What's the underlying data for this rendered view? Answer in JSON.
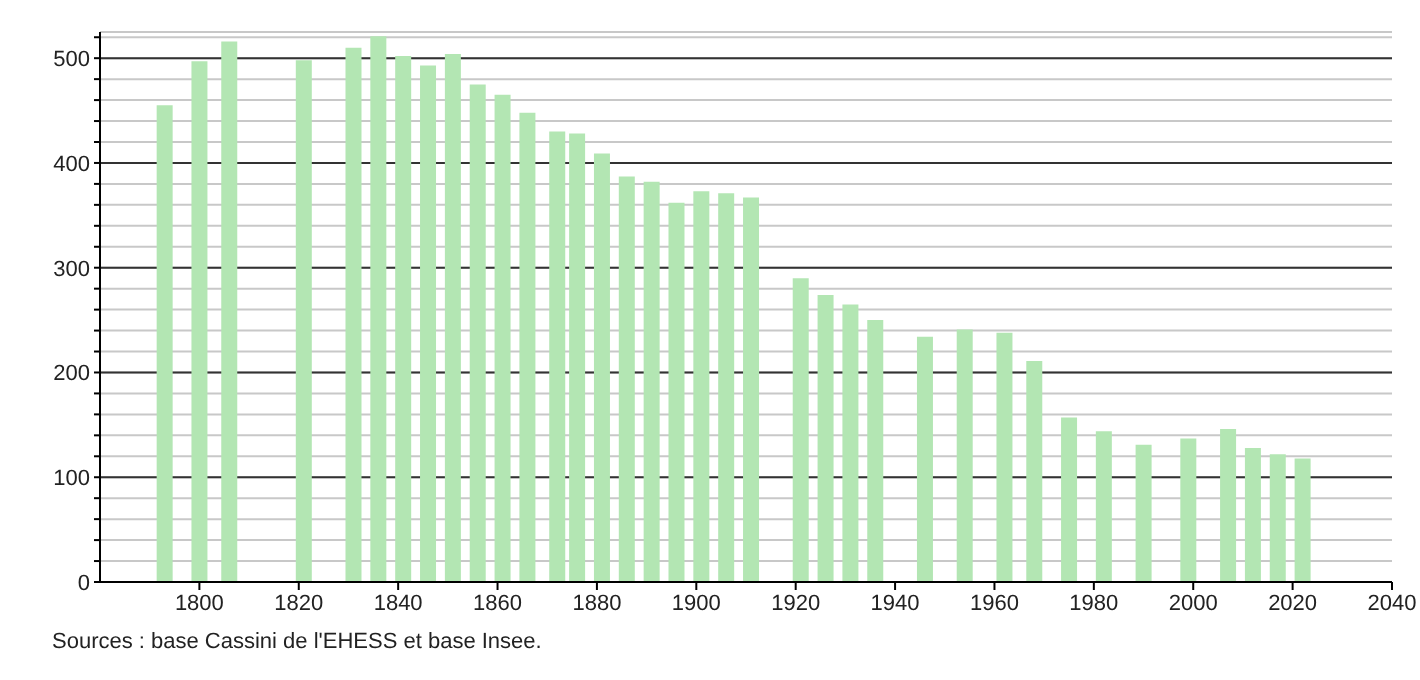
{
  "chart_data": {
    "type": "bar",
    "x": [
      1793,
      1800,
      1806,
      1821,
      1831,
      1836,
      1841,
      1846,
      1851,
      1856,
      1861,
      1866,
      1872,
      1876,
      1881,
      1886,
      1891,
      1896,
      1901,
      1906,
      1911,
      1921,
      1926,
      1931,
      1936,
      1946,
      1954,
      1962,
      1968,
      1975,
      1982,
      1990,
      1999,
      2007,
      2012,
      2017,
      2022
    ],
    "values": [
      455,
      497,
      516,
      498,
      510,
      521,
      502,
      493,
      504,
      475,
      465,
      448,
      430,
      428,
      409,
      387,
      382,
      362,
      373,
      371,
      367,
      290,
      274,
      265,
      250,
      234,
      241,
      238,
      211,
      157,
      144,
      131,
      137,
      146,
      128,
      122,
      118
    ],
    "color": "#b3e6b3",
    "xlim": [
      1780,
      2040
    ],
    "xticks": [
      1800,
      1820,
      1840,
      1860,
      1880,
      1900,
      1920,
      1940,
      1960,
      1980,
      2000,
      2020,
      2040
    ],
    "ylim": [
      0,
      525
    ],
    "yticks": [
      0,
      {
        "value": 20,
        "label": null
      },
      {
        "value": 40,
        "label": null
      },
      {
        "value": 60,
        "label": null
      },
      {
        "value": 80,
        "label": null
      },
      100,
      {
        "value": 120,
        "label": null
      },
      {
        "value": 140,
        "label": null
      },
      {
        "value": 160,
        "label": null
      },
      {
        "value": 180,
        "label": null
      },
      200,
      {
        "value": 220,
        "label": null
      },
      {
        "value": 240,
        "label": null
      },
      {
        "value": 260,
        "label": null
      },
      {
        "value": 280,
        "label": null
      },
      300,
      {
        "value": 320,
        "label": null
      },
      {
        "value": 340,
        "label": null
      },
      {
        "value": 360,
        "label": null
      },
      {
        "value": 380,
        "label": null
      },
      400,
      {
        "value": 420,
        "label": null
      },
      {
        "value": 440,
        "label": null
      },
      {
        "value": 460,
        "label": null
      },
      {
        "value": 480,
        "label": null
      },
      500,
      {
        "value": 520,
        "label": null
      }
    ],
    "grid": "y",
    "annotations": [
      "Sources : base Cassini de l'EHESS et base Insee."
    ]
  }
}
